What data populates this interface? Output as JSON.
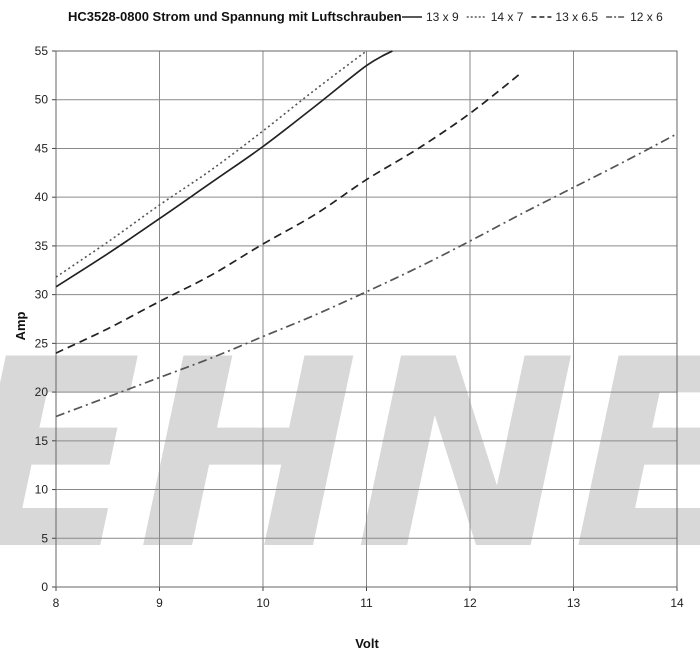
{
  "chart_data": {
    "type": "line",
    "title": "HC3528-0800  Strom und Spannung  mit Luftschrauben",
    "xlabel": "Volt",
    "ylabel": "Amp",
    "xlim": [
      8,
      14
    ],
    "ylim": [
      0,
      55
    ],
    "x_ticks": [
      "8",
      "9",
      "10",
      "11",
      "12",
      "13",
      "14"
    ],
    "y_ticks": [
      "0",
      "5",
      "10",
      "15",
      "20",
      "25",
      "30",
      "35",
      "40",
      "45",
      "50",
      "55"
    ],
    "grid": true,
    "legend_position": "top-right",
    "watermark": "LEHNER",
    "series": [
      {
        "name": "13 x 9",
        "style": "solid",
        "color": "#222222",
        "x": [
          8,
          8.5,
          9,
          9.5,
          10,
          10.5,
          11,
          11.25
        ],
        "values": [
          30.8,
          34.2,
          37.8,
          41.5,
          45.2,
          49.3,
          53.5,
          55
        ]
      },
      {
        "name": "14 x 7",
        "style": "dotted",
        "color": "#555555",
        "x": [
          8,
          8.5,
          9,
          9.5,
          10,
          10.5,
          11
        ],
        "values": [
          31.8,
          35.4,
          39.2,
          42.8,
          46.8,
          51,
          55
        ]
      },
      {
        "name": "13 x 6.5",
        "style": "dashed",
        "color": "#222222",
        "x": [
          8,
          8.5,
          9,
          9.5,
          10,
          10.5,
          11,
          11.5,
          12,
          12.5
        ],
        "values": [
          24,
          26.5,
          29.3,
          32,
          35.2,
          38.2,
          41.8,
          45,
          48.6,
          52.8
        ]
      },
      {
        "name": "12 x 6",
        "style": "dashdot",
        "color": "#555555",
        "x": [
          8,
          8.5,
          9,
          9.5,
          10,
          10.5,
          11,
          11.5,
          12,
          12.5,
          13,
          13.5,
          14
        ],
        "values": [
          17.5,
          19.5,
          21.5,
          23.5,
          25.7,
          27.9,
          30.3,
          32.8,
          35.5,
          38.3,
          41,
          43.7,
          46.5
        ]
      }
    ]
  }
}
